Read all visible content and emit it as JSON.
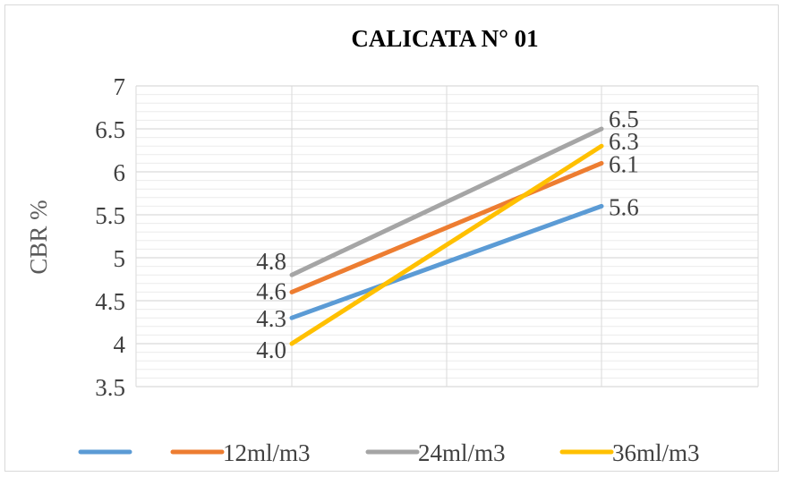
{
  "chart_data": {
    "type": "line",
    "title": "CALICATA N° 01",
    "xlabel": "",
    "ylabel": "CBR %",
    "ylim": [
      3.5,
      7
    ],
    "y_ticks": [
      "3.5",
      "4",
      "4.5",
      "5",
      "5.5",
      "6",
      "6.5",
      "7"
    ],
    "categories": [
      "",
      ""
    ],
    "grid": true,
    "legend_position": "bottom",
    "series": [
      {
        "name": "",
        "color": "#5b9bd5",
        "values": [
          4.3,
          5.6
        ],
        "labels": [
          "4.3",
          "5.6"
        ]
      },
      {
        "name": "12ml/m3",
        "color": "#ed7d31",
        "values": [
          4.6,
          6.1
        ],
        "labels": [
          "4.6",
          "6.1"
        ]
      },
      {
        "name": "24ml/m3",
        "color": "#a5a5a5",
        "values": [
          4.8,
          6.5
        ],
        "labels": [
          "4.8",
          "6.5"
        ]
      },
      {
        "name": "36ml/m3",
        "color": "#ffc000",
        "values": [
          4.0,
          6.3
        ],
        "labels": [
          "4.0",
          "6.3"
        ]
      }
    ]
  }
}
